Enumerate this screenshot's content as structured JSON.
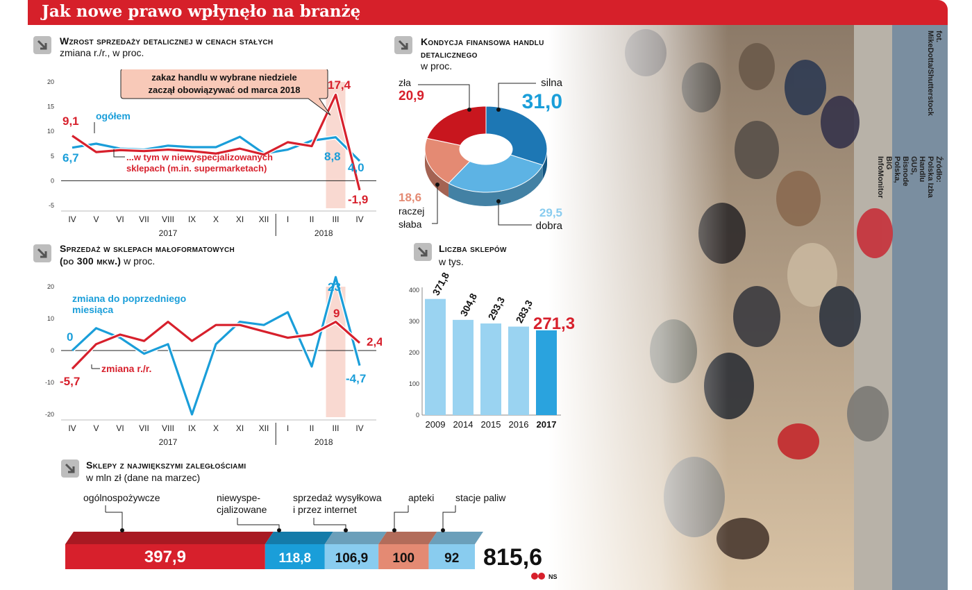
{
  "header": {
    "title": "Jak nowe prawo wpłynęło na branżę"
  },
  "credits": {
    "photo": "fot. MikeDotta/Shutterstock",
    "source": "Źródło: Polska Izba Handlu GUS, Bisnode Polska, BIG InfoMonitor"
  },
  "colors": {
    "red": "#d7202c",
    "blue": "#1a9ed9",
    "banner": "#d6202a",
    "salmon": "#e48a73",
    "lightblue": "#89ccef",
    "gridzero": "#222"
  },
  "sections": {
    "s1": {
      "title": "Wzrost sprzedaży detalicznej w cenach stałych",
      "subtitle": "zmiana r./r., w proc."
    },
    "s2": {
      "title": "Kondycja finansowa handlu detalicznego",
      "subtitle": "w proc."
    },
    "s3": {
      "title": "Sprzedaż w sklepach małoformatowych",
      "title2": "(do 300 mkw.)",
      "subtitle": "w proc."
    },
    "s4": {
      "title": "Liczba sklepów",
      "subtitle": "w tys."
    },
    "s5": {
      "title": "Sklepy z największymi zaległościami",
      "subtitle": "w mln zł (dane na marzec)"
    }
  },
  "chart_data": [
    {
      "type": "line",
      "title": "Wzrost sprzedaży detalicznej w cenach stałych",
      "subtitle": "zmiana r./r., w proc.",
      "categories": [
        "IV",
        "V",
        "VI",
        "VII",
        "VIII",
        "IX",
        "X",
        "XI",
        "XII",
        "I",
        "II",
        "III",
        "IV"
      ],
      "years": [
        {
          "label": "2017"
        },
        {
          "label": "2018"
        }
      ],
      "ylim": [
        -5,
        20
      ],
      "yticks": [
        "20",
        "15",
        "10",
        "5",
        "0",
        "-5"
      ],
      "series": [
        {
          "name": "ogółem",
          "color": "#1a9ed9",
          "values": [
            6.7,
            7.5,
            6.5,
            6.3,
            7.1,
            6.8,
            6.8,
            8.9,
            5.5,
            6.3,
            8.1,
            8.8,
            4.0
          ]
        },
        {
          "name": "...w tym w niewyspecjalizowanych sklepach (m.in. supermarketach)",
          "color": "#d7202c",
          "values": [
            9.1,
            5.8,
            6.2,
            6.0,
            6.3,
            6.0,
            5.5,
            6.5,
            5.3,
            7.8,
            7.0,
            17.4,
            -1.9
          ]
        }
      ],
      "labels": {
        "start_red": "9,1",
        "start_blue": "6,7",
        "end_red": "-1,9",
        "end_blue": "4,0",
        "peak_red": "17,4",
        "peak_blue": "8,8",
        "legend_blue": "ogółem",
        "legend_red1": "...w tym w niewyspecjalizowanych",
        "legend_red2": "sklepach (m.in. supermarketach)"
      },
      "annotation": {
        "line1": "zakaz handlu w wybrane niedziele",
        "line2": "zaczął obowiązywać od marca 2018"
      }
    },
    {
      "type": "pie",
      "title": "Kondycja finansowa handlu detalicznego",
      "slices": [
        {
          "label": "silna",
          "value": 31.0,
          "display": "31,0",
          "color": "#1d77b4"
        },
        {
          "label": "dobra",
          "value": 29.5,
          "display": "29,5",
          "color": "#5db3e4"
        },
        {
          "label": "raczej słaba",
          "value": 18.6,
          "display": "18,6",
          "color": "#e48a73"
        },
        {
          "label": "zła",
          "value": 20.9,
          "display": "20,9",
          "color": "#c8161e"
        }
      ],
      "label_texts": {
        "raczej": "raczej",
        "slaba": "słaba"
      }
    },
    {
      "type": "line",
      "title": "Sprzedaż w sklepach małoformatowych (do 300 mkw.)",
      "subtitle": "w proc.",
      "categories": [
        "IV",
        "V",
        "VI",
        "VII",
        "VIII",
        "IX",
        "X",
        "XI",
        "XII",
        "I",
        "II",
        "III",
        "IV"
      ],
      "years": [
        {
          "label": "2017"
        },
        {
          "label": "2018"
        }
      ],
      "ylim": [
        -20,
        20
      ],
      "yticks": [
        "20",
        "10",
        "0",
        "-10",
        "-20"
      ],
      "series": [
        {
          "name": "zmiana do poprzedniego miesiąca",
          "color": "#1a9ed9",
          "values": [
            0,
            7,
            4,
            -1,
            2,
            -20,
            2,
            9,
            8,
            12,
            -5,
            23,
            -4.7
          ]
        },
        {
          "name": "zmiana r./r.",
          "color": "#d7202c",
          "values": [
            -5.7,
            2,
            5,
            3,
            9,
            3,
            8,
            8,
            6,
            4,
            5,
            9,
            2.4
          ]
        }
      ],
      "labels": {
        "start_blue": "0",
        "start_red": "-5,7",
        "peak_blue": "23",
        "peak_red": "9",
        "end_red": "2,4",
        "end_blue": "-4,7",
        "legend_blue1": "zmiana do poprzedniego",
        "legend_blue2": "miesiąca",
        "legend_red": "zmiana r./r."
      }
    },
    {
      "type": "bar",
      "title": "Liczba sklepów",
      "subtitle": "w tys.",
      "categories": [
        "2009",
        "2014",
        "2015",
        "2016",
        "2017"
      ],
      "values": [
        371.8,
        304.8,
        293.3,
        283.3,
        271.3
      ],
      "value_labels": [
        "371,8",
        "304,8",
        "293,3",
        "283,3",
        "271,3"
      ],
      "ylim": [
        0,
        400
      ],
      "yticks": [
        "400",
        "300",
        "200",
        "100",
        "0"
      ]
    },
    {
      "type": "bar",
      "title": "Sklepy z największymi zaległościami",
      "subtitle": "w mln zł (dane na marzec)",
      "stacked": true,
      "segments": [
        {
          "label": "ogólnospożywcze",
          "value": 397.9,
          "display": "397,9",
          "color": "#d7202c"
        },
        {
          "label1": "niewyspe-",
          "label2": "cjalizowane",
          "value": 118.8,
          "display": "118,8",
          "color": "#1a9ed9"
        },
        {
          "label1": "sprzedaż wysyłkowa",
          "label2": "i przez internet",
          "value": 106.9,
          "display": "106,9",
          "color": "#89ccef"
        },
        {
          "label": "apteki",
          "value": 100,
          "display": "100",
          "color": "#e48a73"
        },
        {
          "label": "stacje paliw",
          "value": 92,
          "display": "92",
          "color": "#89ccef"
        }
      ],
      "total": "815,6",
      "brand": "NS"
    }
  ]
}
